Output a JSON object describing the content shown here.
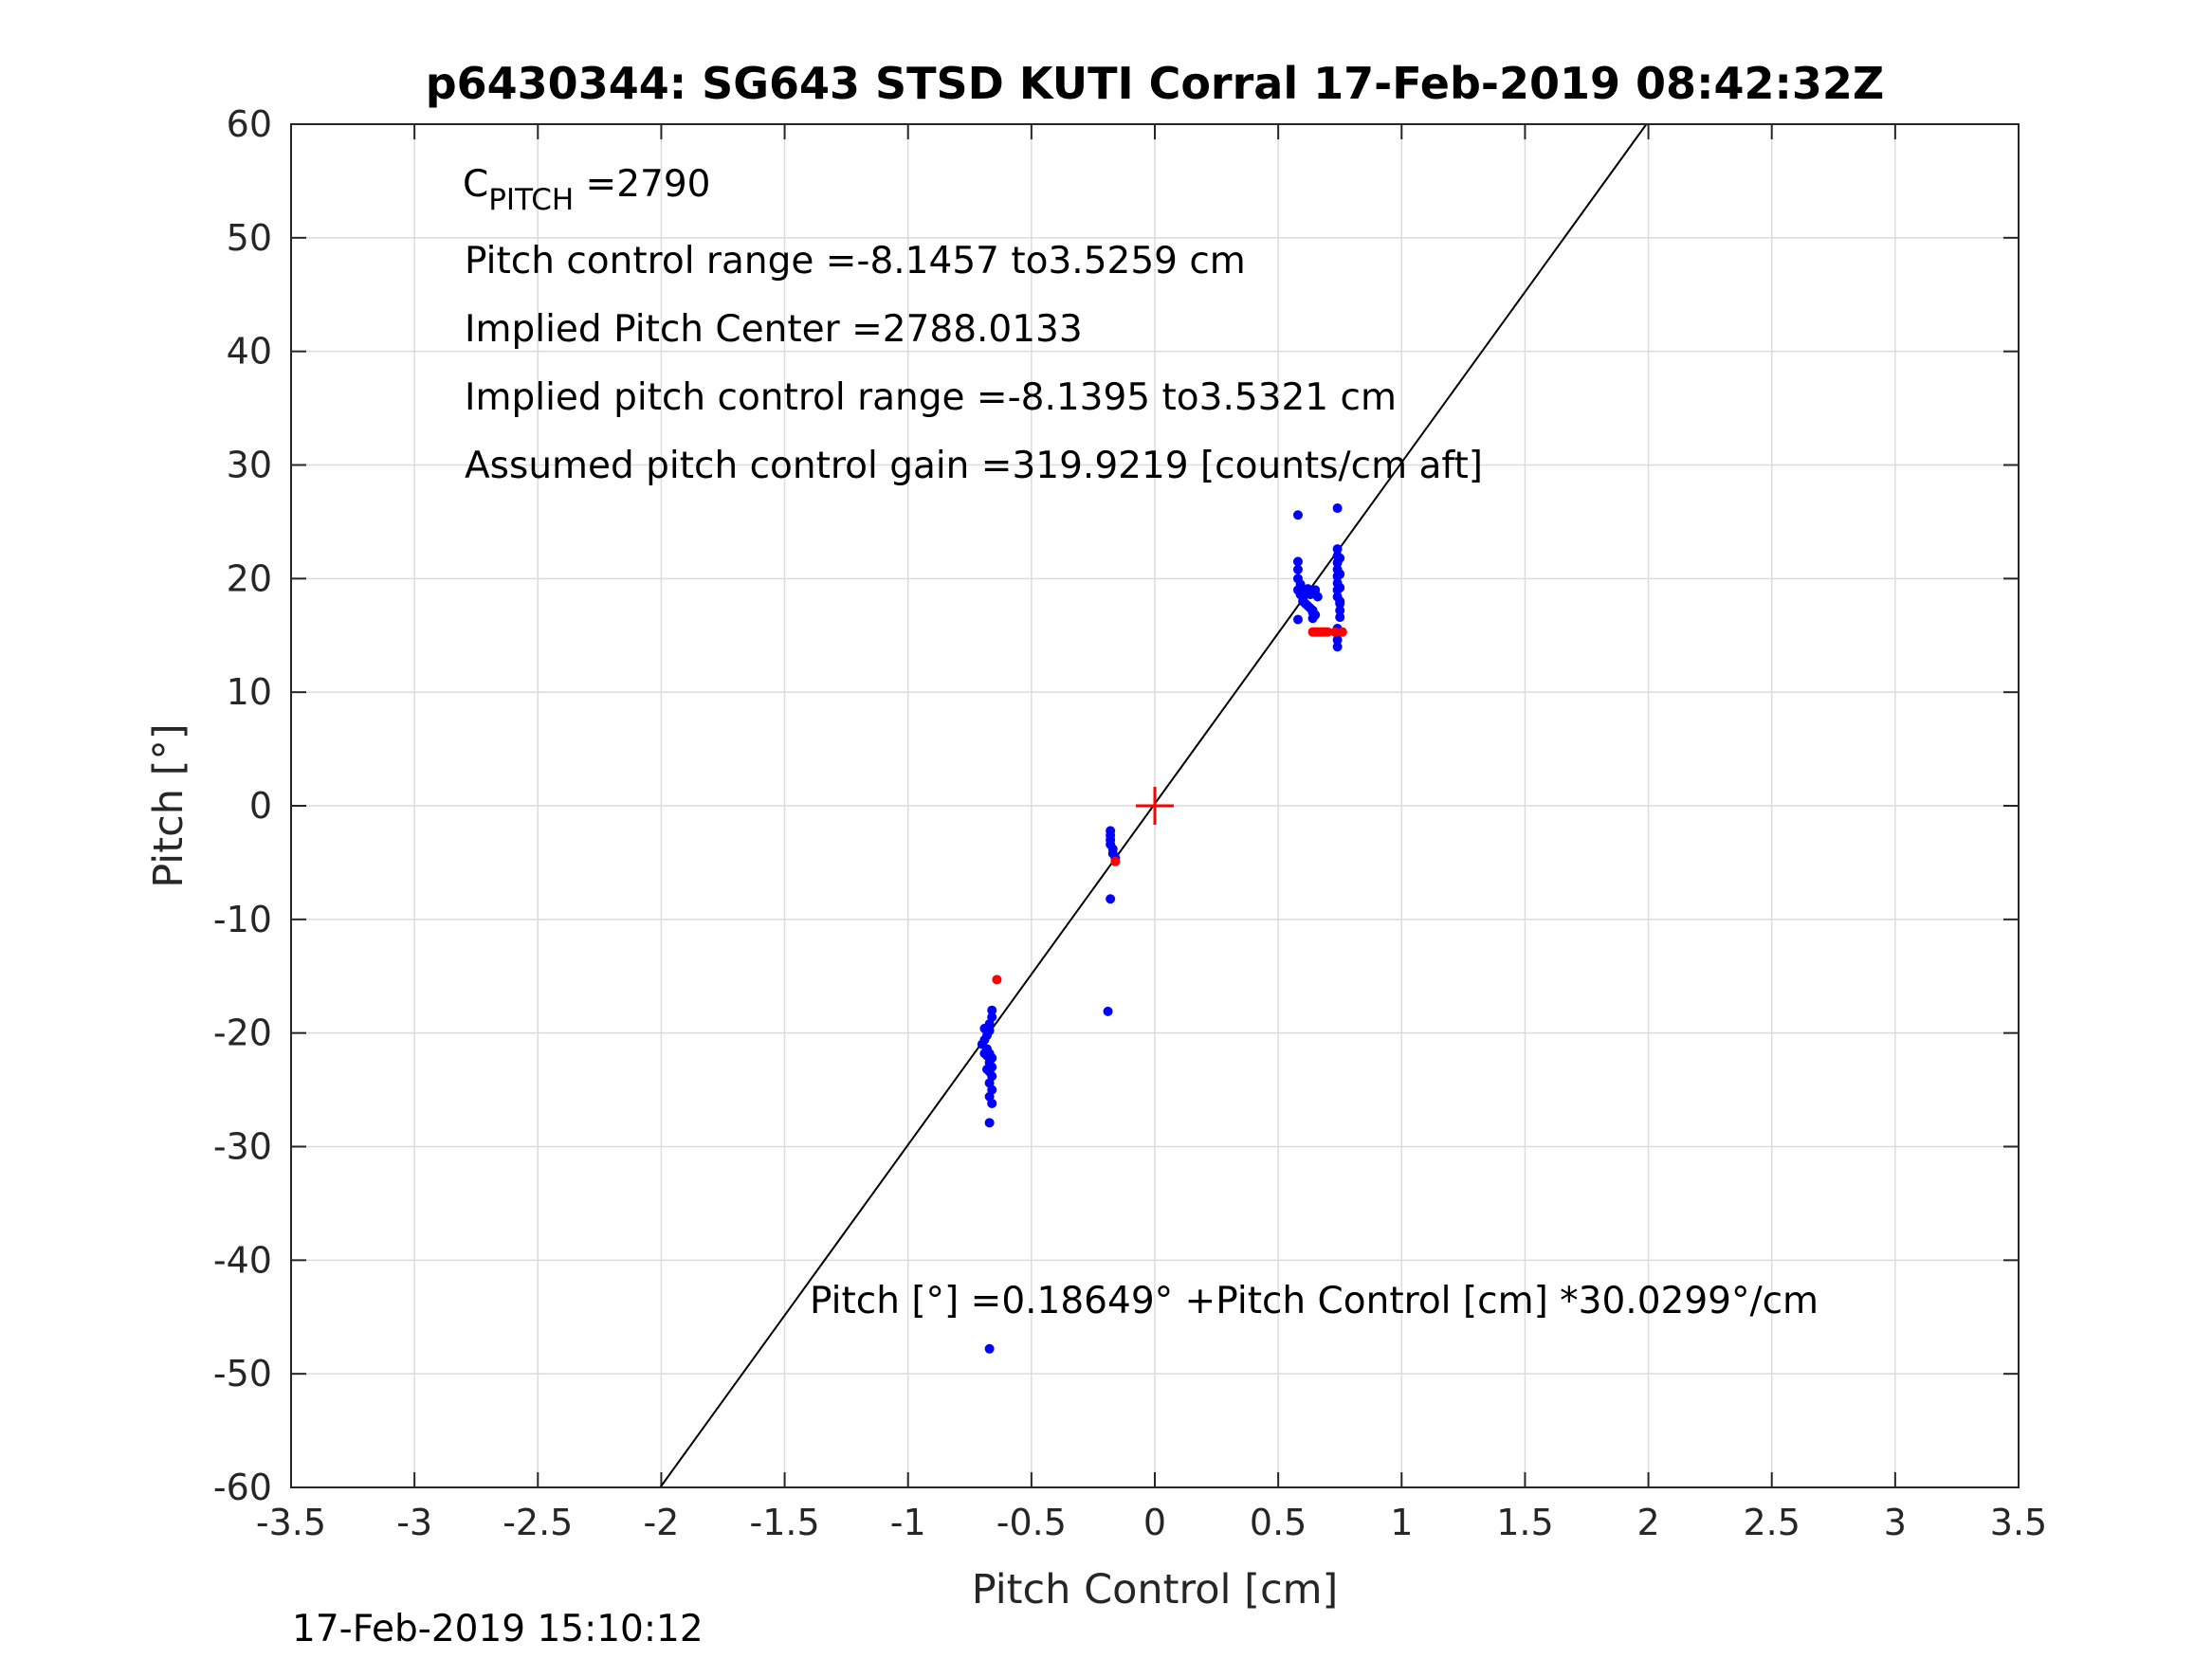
{
  "chart_data": {
    "type": "scatter",
    "title": "p6430344: SG643 STSD KUTI Corral 17-Feb-2019 08:42:32Z",
    "xlabel": "Pitch Control [cm]",
    "ylabel": "Pitch [°]",
    "xlim": [
      -3.5,
      3.5
    ],
    "ylim": [
      -60,
      60
    ],
    "xticks": [
      "-3.5",
      "-3",
      "-2.5",
      "-2",
      "-1.5",
      "-1",
      "-0.5",
      "0",
      "0.5",
      "1",
      "1.5",
      "2",
      "2.5",
      "3",
      "3.5"
    ],
    "yticks": [
      "-60",
      "-50",
      "-40",
      "-30",
      "-20",
      "-10",
      "0",
      "10",
      "20",
      "30",
      "40",
      "50",
      "60"
    ],
    "grid": true,
    "annotations": {
      "c_pitch_main": "C",
      "c_pitch_sub": "PITCH",
      "c_pitch_value": " =2790",
      "line2": "Pitch control range =-8.1457 to3.5259 cm",
      "line3": "Implied Pitch Center =2788.0133",
      "line4": "Implied pitch control range =-8.1395 to3.5321 cm",
      "line5": "Assumed pitch control gain =319.9219 [counts/cm aft]",
      "fit_equation": "Pitch [°] =0.18649° +Pitch Control [cm] *30.0299°/cm"
    },
    "fit_line": {
      "intercept": 0.18649,
      "slope": 30.0299,
      "color": "#000000"
    },
    "center_marker": {
      "x": 0,
      "y": 0,
      "color": "#ff0000"
    },
    "series": [
      {
        "color": "#0000ff",
        "points": [
          [
            0.58,
            25.6
          ],
          [
            0.74,
            26.2
          ],
          [
            0.58,
            21.5
          ],
          [
            0.58,
            20.8
          ],
          [
            0.58,
            20.0
          ],
          [
            0.59,
            19.5
          ],
          [
            0.58,
            19.0
          ],
          [
            0.59,
            18.6
          ],
          [
            0.6,
            18.3
          ],
          [
            0.6,
            18.0
          ],
          [
            0.61,
            17.8
          ],
          [
            0.62,
            17.6
          ],
          [
            0.63,
            17.4
          ],
          [
            0.64,
            17.2
          ],
          [
            0.64,
            17.0
          ],
          [
            0.65,
            16.8
          ],
          [
            0.64,
            16.5
          ],
          [
            0.58,
            16.4
          ],
          [
            0.6,
            18.8
          ],
          [
            0.62,
            19.1
          ],
          [
            0.65,
            19.0
          ],
          [
            0.66,
            18.4
          ],
          [
            0.63,
            18.6
          ],
          [
            0.74,
            22.6
          ],
          [
            0.74,
            22.0
          ],
          [
            0.74,
            21.4
          ],
          [
            0.74,
            20.8
          ],
          [
            0.74,
            20.2
          ],
          [
            0.74,
            19.6
          ],
          [
            0.74,
            19.0
          ],
          [
            0.74,
            18.4
          ],
          [
            0.75,
            17.8
          ],
          [
            0.75,
            17.2
          ],
          [
            0.75,
            16.6
          ],
          [
            0.74,
            15.6
          ],
          [
            0.74,
            14.6
          ],
          [
            0.74,
            14.0
          ],
          [
            0.75,
            21.8
          ],
          [
            0.75,
            20.4
          ],
          [
            0.75,
            19.2
          ],
          [
            0.75,
            18.0
          ],
          [
            -0.18,
            -2.2
          ],
          [
            -0.18,
            -2.6
          ],
          [
            -0.18,
            -3.0
          ],
          [
            -0.18,
            -3.4
          ],
          [
            -0.17,
            -3.8
          ],
          [
            -0.17,
            -4.2
          ],
          [
            -0.16,
            -4.6
          ],
          [
            -0.18,
            -8.2
          ],
          [
            -0.19,
            -18.1
          ],
          [
            -0.66,
            -18.0
          ],
          [
            -0.66,
            -18.6
          ],
          [
            -0.67,
            -19.2
          ],
          [
            -0.67,
            -19.8
          ],
          [
            -0.68,
            -20.2
          ],
          [
            -0.69,
            -20.6
          ],
          [
            -0.7,
            -21.0
          ],
          [
            -0.68,
            -21.4
          ],
          [
            -0.67,
            -21.8
          ],
          [
            -0.66,
            -22.2
          ],
          [
            -0.67,
            -22.6
          ],
          [
            -0.66,
            -23.0
          ],
          [
            -0.67,
            -23.4
          ],
          [
            -0.66,
            -23.8
          ],
          [
            -0.67,
            -24.4
          ],
          [
            -0.66,
            -25.0
          ],
          [
            -0.67,
            -25.6
          ],
          [
            -0.66,
            -26.2
          ],
          [
            -0.67,
            -27.9
          ],
          [
            -0.67,
            -47.8
          ],
          [
            -0.69,
            -19.6
          ],
          [
            -0.68,
            -22.0
          ],
          [
            -0.68,
            -23.2
          ],
          [
            -0.69,
            -21.8
          ]
        ]
      },
      {
        "color": "#ff0000",
        "points": [
          [
            0.64,
            15.3
          ],
          [
            0.65,
            15.3
          ],
          [
            0.66,
            15.3
          ],
          [
            0.67,
            15.3
          ],
          [
            0.68,
            15.3
          ],
          [
            0.69,
            15.3
          ],
          [
            0.7,
            15.3
          ],
          [
            0.73,
            15.3
          ],
          [
            0.76,
            15.3
          ],
          [
            -0.16,
            -4.9
          ],
          [
            -0.64,
            -15.3
          ]
        ]
      }
    ],
    "footer": "17-Feb-2019 15:10:12"
  }
}
